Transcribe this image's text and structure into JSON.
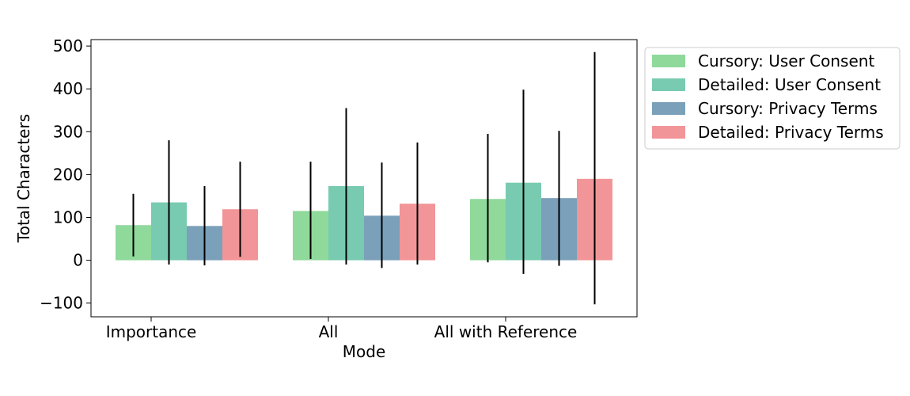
{
  "chart_data": {
    "type": "bar",
    "xlabel": "Mode",
    "ylabel": "Total Characters",
    "ylim": [
      -132,
      515
    ],
    "yticks": [
      -100,
      0,
      100,
      200,
      300,
      400,
      500
    ],
    "ytick_labels": [
      "−100",
      "0",
      "100",
      "200",
      "300",
      "400",
      "500"
    ],
    "grid": false,
    "legend_position": "outside-top-right",
    "categories": [
      "Importance",
      "All",
      "All with Reference"
    ],
    "series": [
      {
        "name": "Cursory: User Consent",
        "color": "#8fd99b",
        "values": [
          82,
          115,
          143
        ],
        "err_low": [
          9,
          3,
          -5
        ],
        "err_high": [
          155,
          230,
          295
        ]
      },
      {
        "name": "Detailed: User Consent",
        "color": "#78cbb0",
        "values": [
          135,
          173,
          181
        ],
        "err_low": [
          -10,
          -10,
          -32
        ],
        "err_high": [
          280,
          355,
          398
        ]
      },
      {
        "name": "Cursory: Privacy Terms",
        "color": "#7aa0ba",
        "values": [
          80,
          104,
          145
        ],
        "err_low": [
          -12,
          -18,
          -13
        ],
        "err_high": [
          173,
          228,
          302
        ]
      },
      {
        "name": "Detailed: Privacy Terms",
        "color": "#f29598",
        "values": [
          119,
          132,
          190
        ],
        "err_low": [
          8,
          -10,
          -103
        ],
        "err_high": [
          230,
          275,
          486
        ]
      }
    ]
  }
}
